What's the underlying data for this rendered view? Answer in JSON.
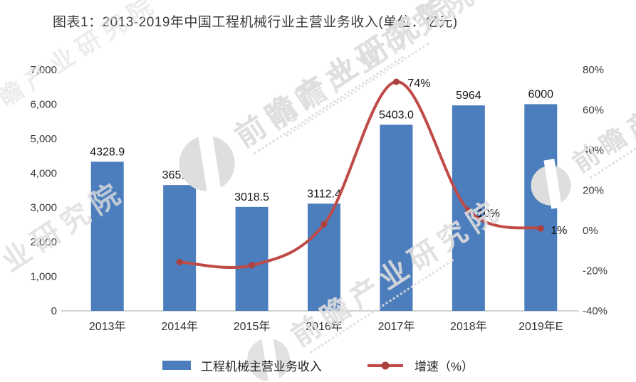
{
  "title": "图表1：2013-2019年中国工程机械行业主营业务收入(单位：亿元)",
  "colors": {
    "bar": "#4c7dbd",
    "line": "#bf4b47",
    "marker": "#ab403d",
    "axis_line": "#c3c3c3",
    "tick_text": "#3a3a3a",
    "watermark": "#dedede"
  },
  "watermark": {
    "brand": "前瞻产业研究院"
  },
  "chart_data": {
    "type": "bar+line combo",
    "categories": [
      "2013年",
      "2014年",
      "2015年",
      "2016年",
      "2017年",
      "2018年",
      "2019年E"
    ],
    "series": [
      {
        "name": "工程机械主营业务收入",
        "type": "bar",
        "axis": "left",
        "values": [
          4328.9,
          3651.2,
          3018.5,
          3112.4,
          5403.0,
          5964,
          6000
        ],
        "labels": [
          "4328.9",
          "3651.2",
          "3018.5",
          "3112.4",
          "5403.0",
          "5964",
          "6000"
        ]
      },
      {
        "name": "增速（%）",
        "type": "line",
        "axis": "right",
        "values": [
          null,
          -15.7,
          -17.3,
          3.1,
          74,
          10,
          1
        ],
        "labels": [
          null,
          null,
          null,
          null,
          "74%",
          "10%",
          "1%"
        ]
      }
    ],
    "left_axis": {
      "min": 0,
      "max": 7000,
      "step": 1000,
      "ticks": [
        "7,000",
        "6,000",
        "5,000",
        "4,000",
        "3,000",
        "2,000",
        "1,000",
        "0"
      ]
    },
    "right_axis": {
      "min": -40,
      "max": 80,
      "step": 20,
      "ticks": [
        "80%",
        "60%",
        "40%",
        "20%",
        "0%",
        "-20%",
        "-40%"
      ]
    },
    "legend": [
      "工程机械主营业务收入",
      "增速（%）"
    ],
    "grid": false,
    "legend_position": "bottom-center"
  }
}
